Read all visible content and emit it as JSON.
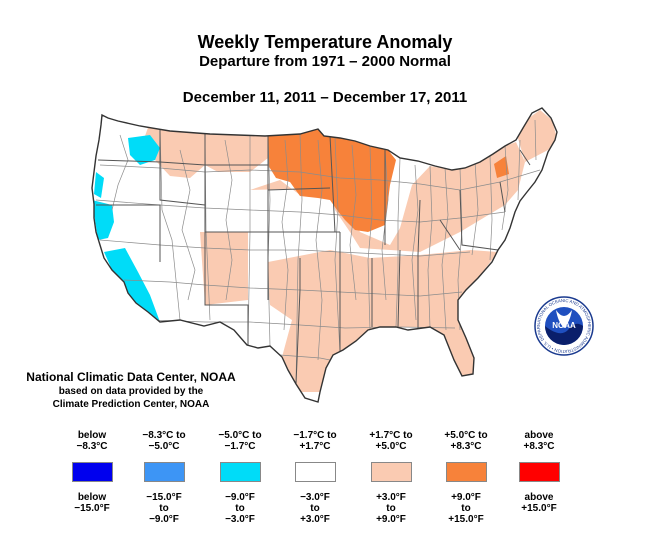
{
  "title": "Weekly Temperature Anomaly",
  "subtitle": "Departure from 1971 – 2000 Normal",
  "date_range": "December 11, 2011 – December 17, 2011",
  "credit": {
    "line1": "National Climatic Data Center, NOAA",
    "line2": "based on data provided by the",
    "line3": "Climate Prediction Center, NOAA"
  },
  "noaa_logo": {
    "text": "NOAA",
    "ring_text": "NATIONAL OCEANIC AND ATMOSPHERIC ADMINISTRATION • U.S. DEPARTMENT OF COMMERCE"
  },
  "colors": {
    "cold_extreme": "#0000ee",
    "cold_strong": "#3d95f5",
    "cold_moderate": "#00dcf8",
    "near_normal": "#ffffff",
    "warm_moderate": "#facbb2",
    "warm_strong": "#f7823a",
    "warm_extreme": "#ff0000",
    "boundary": "#8c8c8c"
  },
  "legend": [
    {
      "top1": "below",
      "top2": "−8.3°C",
      "color": "#0000ee",
      "bot1": "below",
      "bot2": "−15.0°F",
      "bot3": ""
    },
    {
      "top1": "−8.3°C to",
      "top2": "−5.0°C",
      "color": "#3d95f5",
      "bot1": "−15.0°F",
      "bot2": "to",
      "bot3": "−9.0°F"
    },
    {
      "top1": "−5.0°C to",
      "top2": "−1.7°C",
      "color": "#00dcf8",
      "bot1": "−9.0°F",
      "bot2": "to",
      "bot3": "−3.0°F"
    },
    {
      "top1": "−1.7°C to",
      "top2": "+1.7°C",
      "color": "#ffffff",
      "bot1": "−3.0°F",
      "bot2": "to",
      "bot3": "+3.0°F"
    },
    {
      "top1": "+1.7°C to",
      "top2": "+5.0°C",
      "color": "#facbb2",
      "bot1": "+3.0°F",
      "bot2": "to",
      "bot3": "+9.0°F"
    },
    {
      "top1": "+5.0°C to",
      "top2": "+8.3°C",
      "color": "#f7823a",
      "bot1": "+9.0°F",
      "bot2": "to",
      "bot3": "+15.0°F"
    },
    {
      "top1": "above",
      "top2": "+8.3°C",
      "color": "#ff0000",
      "bot1": "above",
      "bot2": "+15.0°F",
      "bot3": ""
    }
  ]
}
